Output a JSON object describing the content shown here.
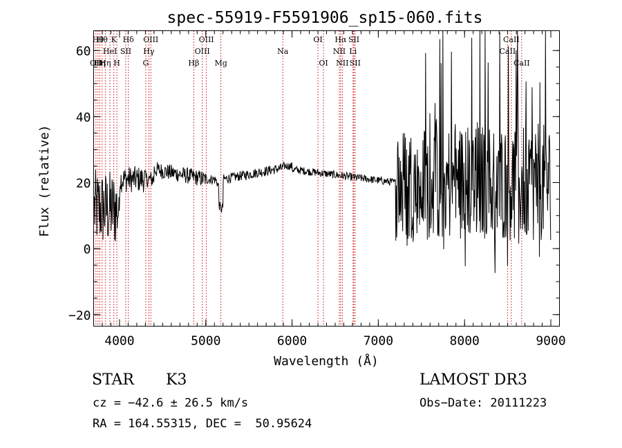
{
  "chart_data": {
    "type": "line",
    "title": "spec-55919-F5591906_sp15-060.fits",
    "xlabel": "Wavelength (Å)",
    "ylabel": "Flux (relative)",
    "xlim": [
      3700,
      9100
    ],
    "ylim": [
      -23.5,
      66
    ],
    "x_ticks": [
      {
        "value": 4000,
        "label": "4000"
      },
      {
        "value": 5000,
        "label": "5000"
      },
      {
        "value": 6000,
        "label": "6000"
      },
      {
        "value": 7000,
        "label": "7000"
      },
      {
        "value": 8000,
        "label": "8000"
      },
      {
        "value": 9000,
        "label": "9000"
      }
    ],
    "y_ticks": [
      {
        "value": -20,
        "label": "−20"
      },
      {
        "value": 0,
        "label": "0"
      },
      {
        "value": 20,
        "label": "20"
      },
      {
        "value": 40,
        "label": "40"
      },
      {
        "value": 60,
        "label": "60"
      }
    ],
    "line_color": "#000000",
    "line_marker_color": "#cc0000",
    "spectrum_segments": [
      {
        "range": [
          3700,
          3990
        ],
        "noise": 12,
        "level": 12
      },
      {
        "range": [
          3990,
          4300
        ],
        "noise": 4,
        "level": 21
      },
      {
        "range": [
          4300,
          5000
        ],
        "noise": 2.5,
        "level": 24
      },
      {
        "range": [
          5000,
          5900
        ],
        "noise": 1.5,
        "level": 23
      },
      {
        "range": [
          5900,
          7200
        ],
        "noise": 1.2,
        "level": 22
      },
      {
        "range": [
          7200,
          9000
        ],
        "noise": 18,
        "level": 20
      }
    ],
    "lines": [
      {
        "wave": 3727,
        "label": "OII",
        "row": 3
      },
      {
        "wave": 3750,
        "label": "Hθ",
        "row": 1
      },
      {
        "wave": 3771,
        "label": "Hη",
        "row": 3
      },
      {
        "wave": 3798,
        "label": "Hθ",
        "row": 1
      },
      {
        "wave": 3835,
        "label": "Hη",
        "row": 3
      },
      {
        "wave": 3889,
        "label": "HeI",
        "row": 2
      },
      {
        "wave": 3934,
        "label": "K",
        "row": 1
      },
      {
        "wave": 3969,
        "label": "H",
        "row": 3
      },
      {
        "wave": 4072,
        "label": "SII",
        "row": 2
      },
      {
        "wave": 4102,
        "label": "Hδ",
        "row": 1
      },
      {
        "wave": 4304,
        "label": "G",
        "row": 3
      },
      {
        "wave": 4340,
        "label": "Hγ",
        "row": 2
      },
      {
        "wave": 4363,
        "label": "OIII",
        "row": 1
      },
      {
        "wave": 4861,
        "label": "Hβ",
        "row": 3
      },
      {
        "wave": 4959,
        "label": "OIII",
        "row": 2
      },
      {
        "wave": 5007,
        "label": "OIII",
        "row": 1
      },
      {
        "wave": 5175,
        "label": "Mg",
        "row": 3
      },
      {
        "wave": 5893,
        "label": "Na",
        "row": 2
      },
      {
        "wave": 6300,
        "label": "OI",
        "row": 1
      },
      {
        "wave": 6364,
        "label": "OI",
        "row": 3
      },
      {
        "wave": 6548,
        "label": "NII",
        "row": 2
      },
      {
        "wave": 6563,
        "label": "Hα",
        "row": 1
      },
      {
        "wave": 6583,
        "label": "NII",
        "row": 3
      },
      {
        "wave": 6707,
        "label": "Li",
        "row": 2
      },
      {
        "wave": 6716,
        "label": "SII",
        "row": 1
      },
      {
        "wave": 6731,
        "label": "SII",
        "row": 3
      },
      {
        "wave": 8498,
        "label": "CaII",
        "row": 2
      },
      {
        "wave": 8542,
        "label": "CaII",
        "row": 1
      },
      {
        "wave": 8662,
        "label": "CaII",
        "row": 3
      }
    ]
  },
  "footer": {
    "object_class": "STAR",
    "subclass": "K3",
    "survey": "LAMOST DR3",
    "cz": "cz = −42.6 ± 26.5 km/s",
    "obs_date": "Obs−Date: 20111223",
    "coords": "RA = 164.55315, DEC =  50.95624"
  }
}
